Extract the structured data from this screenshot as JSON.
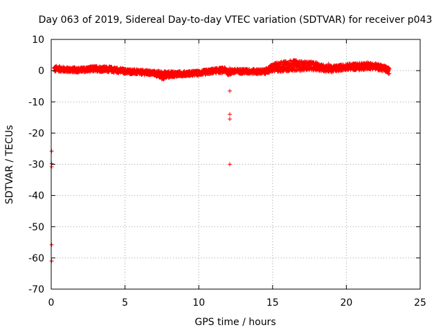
{
  "chart_data": {
    "type": "scatter",
    "title": "Day 063 of 2019, Sidereal Day-to-day VTEC variation (SDTVAR) for receiver p043",
    "xlabel": "GPS time / hours",
    "ylabel": "SDTVAR / TECUs",
    "xlim": [
      0,
      25
    ],
    "ylim": [
      -70,
      10
    ],
    "xticks": [
      0,
      5,
      10,
      15,
      20,
      25
    ],
    "yticks": [
      10,
      0,
      -10,
      -20,
      -30,
      -40,
      -50,
      -60,
      -70
    ],
    "xtick_labels": [
      "0",
      "5",
      "10",
      "15",
      "20",
      "25"
    ],
    "ytick_labels": [
      "10",
      "0",
      "-10",
      "-20",
      "-30",
      "-40",
      "-50",
      "-60",
      "-70"
    ],
    "grid": true,
    "marker": "plus",
    "color": "#ff0000",
    "band": {
      "x": [
        0.2,
        0.5,
        1.0,
        2.0,
        3.0,
        4.0,
        5.0,
        6.0,
        7.0,
        7.5,
        8.0,
        9.0,
        10.0,
        11.0,
        11.8,
        12.0,
        12.3,
        13.0,
        14.0,
        14.5,
        15.0,
        15.5,
        16.0,
        16.5,
        17.0,
        17.5,
        18.0,
        18.5,
        19.0,
        19.5,
        20.0,
        21.0,
        21.5,
        22.0,
        22.5,
        22.9
      ],
      "center": [
        0.5,
        0.6,
        0.3,
        0.2,
        0.6,
        0.4,
        -0.2,
        -0.5,
        -0.8,
        -1.5,
        -1.2,
        -1.0,
        -0.8,
        -0.1,
        0.2,
        -0.6,
        -0.2,
        -0.2,
        -0.3,
        -0.3,
        0.9,
        1.2,
        1.5,
        1.7,
        1.5,
        1.6,
        1.3,
        0.8,
        0.5,
        0.9,
        1.2,
        1.3,
        1.6,
        1.3,
        0.8,
        -0.1
      ],
      "halfwidth": [
        1.0,
        0.9,
        0.8,
        0.8,
        0.9,
        0.9,
        0.8,
        0.8,
        0.8,
        1.4,
        1.0,
        0.8,
        0.8,
        0.8,
        0.9,
        0.9,
        0.8,
        0.8,
        0.8,
        0.8,
        1.3,
        1.6,
        1.8,
        1.7,
        1.5,
        1.4,
        1.3,
        1.1,
        1.0,
        1.0,
        1.0,
        1.2,
        1.1,
        1.0,
        1.0,
        1.0
      ]
    },
    "outliers": {
      "x": [
        0.03,
        0.03,
        0.03,
        0.03,
        0.03,
        12.1,
        12.1,
        12.1,
        12.1,
        12.1,
        15.3,
        15.6,
        16.0,
        17.0,
        18.2,
        18.8
      ],
      "y": [
        -25.8,
        -29.8,
        -30.8,
        -55.8,
        -61.0,
        -6.5,
        -14.0,
        -15.5,
        -30.0,
        0.8,
        2.6,
        2.8,
        2.4,
        2.0,
        1.4,
        2.2
      ]
    }
  }
}
